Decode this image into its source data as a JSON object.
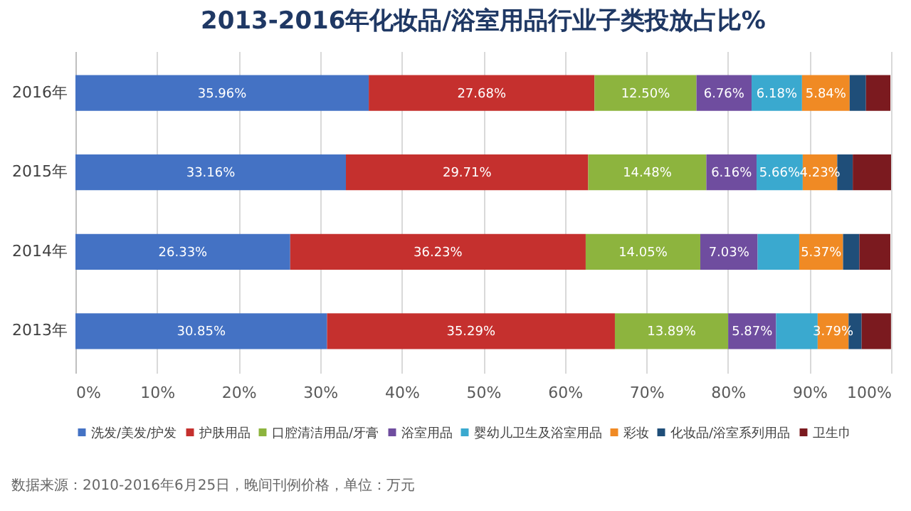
{
  "chart_data": {
    "type": "bar",
    "orientation": "horizontal",
    "stacked": true,
    "title": "2013-2016年化妆品/浴室用品行业子类投放占比%",
    "categories": [
      "2016年",
      "2015年",
      "2014年",
      "2013年"
    ],
    "series": [
      {
        "name": "洗发/美发/护发",
        "color": "#4472c4",
        "values": [
          35.96,
          33.16,
          26.33,
          30.85
        ],
        "value_labels": [
          "35.96%",
          "33.16%",
          "26.33%",
          "30.85%"
        ]
      },
      {
        "name": "护肤用品",
        "color": "#c5302e",
        "values": [
          27.68,
          29.71,
          36.23,
          35.29
        ],
        "value_labels": [
          "27.68%",
          "29.71%",
          "36.23%",
          "35.29%"
        ]
      },
      {
        "name": "口腔清洁用品/牙膏",
        "color": "#8db43e",
        "values": [
          12.5,
          14.48,
          14.05,
          13.89
        ],
        "value_labels": [
          "12.50%",
          "14.48%",
          "14.05%",
          "13.89%"
        ]
      },
      {
        "name": "浴室用品",
        "color": "#6f4d9f",
        "values": [
          6.76,
          6.16,
          7.03,
          5.87
        ],
        "value_labels": [
          "6.76%",
          "6.16%",
          "7.03%",
          "5.87%"
        ]
      },
      {
        "name": "婴幼儿卫生及浴室用品",
        "color": "#3aa9cf",
        "values": [
          6.18,
          5.66,
          5.1,
          5.1
        ],
        "value_labels": [
          "6.18%",
          "5.66%",
          null,
          null
        ]
      },
      {
        "name": "彩妆",
        "color": "#f08a24",
        "values": [
          5.84,
          4.23,
          5.37,
          3.79
        ],
        "value_labels": [
          "5.84%",
          "4.23%",
          "5.37%",
          "3.79%"
        ]
      },
      {
        "name": "化妆品/浴室系列用品",
        "color": "#1f4e79",
        "values": [
          2.0,
          1.9,
          2.0,
          1.6
        ],
        "value_labels": [
          null,
          null,
          null,
          null
        ]
      },
      {
        "name": "卫生巾",
        "color": "#7b1a1f",
        "values": [
          3.0,
          4.7,
          3.8,
          3.6
        ],
        "value_labels": [
          null,
          null,
          null,
          null
        ]
      }
    ],
    "xlim": [
      0,
      100
    ],
    "xticks": [
      {
        "value": 0,
        "label": "0%"
      },
      {
        "value": 10,
        "label": "10%"
      },
      {
        "value": 20,
        "label": "20%"
      },
      {
        "value": 30,
        "label": "30%"
      },
      {
        "value": 40,
        "label": "40%"
      },
      {
        "value": 50,
        "label": "50%"
      },
      {
        "value": 60,
        "label": "60%"
      },
      {
        "value": 70,
        "label": "70%"
      },
      {
        "value": 80,
        "label": "80%"
      },
      {
        "value": 90,
        "label": "90%"
      },
      {
        "value": 100,
        "label": "100%"
      }
    ],
    "grid": "x",
    "legend": "bottom",
    "annotations": [
      "数据来源：2010-2016年6月25日，晚间刊例价格，单位：万元"
    ]
  }
}
